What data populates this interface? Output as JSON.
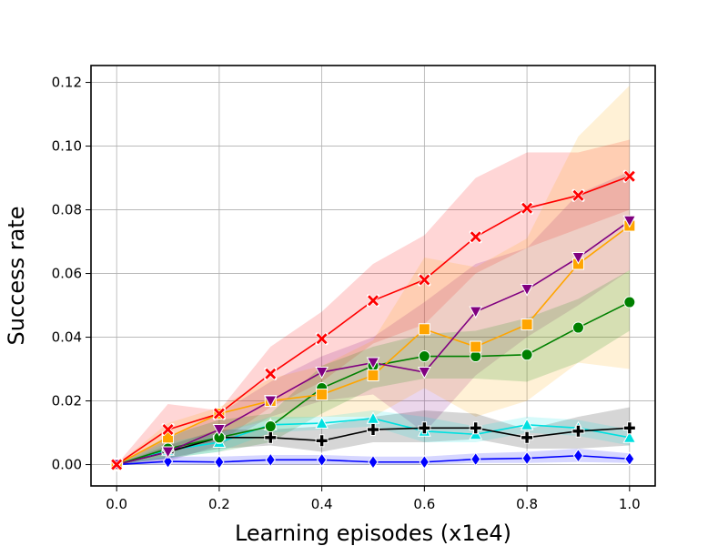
{
  "chart_data": {
    "type": "line",
    "title": "",
    "xlabel": "Learning episodes (x1e4)",
    "ylabel": "Success rate",
    "xlim": [
      -0.05,
      1.05
    ],
    "ylim": [
      -0.0067,
      0.1253
    ],
    "grid": true,
    "x": [
      0.0,
      0.1,
      0.2,
      0.3,
      0.4,
      0.5,
      0.6,
      0.7,
      0.8,
      0.9,
      1.0
    ],
    "xticks": [
      "0.0",
      "0.2",
      "0.4",
      "0.6",
      "0.8",
      "1.0"
    ],
    "yticks": [
      "0.00",
      "0.02",
      "0.04",
      "0.06",
      "0.08",
      "0.10",
      "0.12"
    ],
    "series": [
      {
        "color": "#ff0000",
        "marker": "x",
        "values": [
          0.0,
          0.011,
          0.016,
          0.0285,
          0.0395,
          0.0515,
          0.058,
          0.0715,
          0.0805,
          0.0845,
          0.0905
        ],
        "lower": [
          0.0,
          0.004,
          0.007,
          0.018,
          0.026,
          0.038,
          0.044,
          0.06,
          0.068,
          0.074,
          0.08
        ],
        "upper": [
          0.0,
          0.019,
          0.017,
          0.037,
          0.048,
          0.063,
          0.072,
          0.09,
          0.098,
          0.098,
          0.102
        ]
      },
      {
        "color": "#800080",
        "marker": "triangle-down",
        "values": [
          0.0,
          0.004,
          0.011,
          0.02,
          0.029,
          0.032,
          0.029,
          0.048,
          0.055,
          0.065,
          0.0765
        ],
        "lower": [
          0.0,
          0.001,
          0.006,
          0.015,
          0.02,
          0.022,
          0.01,
          0.028,
          0.04,
          0.05,
          0.061
        ],
        "upper": [
          0.0,
          0.008,
          0.016,
          0.026,
          0.034,
          0.04,
          0.051,
          0.063,
          0.068,
          0.085,
          0.092
        ]
      },
      {
        "color": "#ffa500",
        "marker": "square",
        "values": [
          0.0,
          0.0085,
          0.016,
          0.02,
          0.022,
          0.028,
          0.0425,
          0.037,
          0.044,
          0.063,
          0.075
        ],
        "lower": [
          0.0,
          0.003,
          0.01,
          0.014,
          0.015,
          0.015,
          0.024,
          0.015,
          0.02,
          0.032,
          0.03
        ],
        "upper": [
          0.0,
          0.013,
          0.018,
          0.027,
          0.031,
          0.039,
          0.065,
          0.062,
          0.071,
          0.103,
          0.119
        ]
      },
      {
        "color": "#008000",
        "marker": "circle",
        "values": [
          0.0,
          0.005,
          0.0085,
          0.012,
          0.024,
          0.031,
          0.034,
          0.034,
          0.0345,
          0.043,
          0.051
        ],
        "lower": [
          0.0,
          0.002,
          0.004,
          0.007,
          0.016,
          0.024,
          0.027,
          0.027,
          0.026,
          0.032,
          0.042
        ],
        "upper": [
          0.0,
          0.009,
          0.014,
          0.016,
          0.031,
          0.037,
          0.041,
          0.042,
          0.046,
          0.052,
          0.061
        ]
      },
      {
        "color": "#000000",
        "marker": "plus",
        "values": [
          0.0,
          0.004,
          0.0085,
          0.0085,
          0.0075,
          0.011,
          0.0115,
          0.0115,
          0.0085,
          0.0105,
          0.0115
        ],
        "lower": [
          0.0,
          0.002,
          0.005,
          0.006,
          0.004,
          0.007,
          0.007,
          0.008,
          0.005,
          0.005,
          0.006
        ],
        "upper": [
          0.0,
          0.006,
          0.011,
          0.011,
          0.012,
          0.015,
          0.017,
          0.016,
          0.011,
          0.015,
          0.018
        ]
      },
      {
        "color": "#00e0e0",
        "marker": "triangle-up",
        "values": [
          0.0,
          0.0045,
          0.007,
          0.0125,
          0.013,
          0.0145,
          0.0105,
          0.0095,
          0.0125,
          0.0115,
          0.0085
        ],
        "lower": [
          0.0,
          0.002,
          0.004,
          0.01,
          0.011,
          0.012,
          0.007,
          0.007,
          0.01,
          0.009,
          0.006
        ],
        "upper": [
          0.0,
          0.007,
          0.01,
          0.015,
          0.015,
          0.017,
          0.015,
          0.012,
          0.015,
          0.014,
          0.011
        ]
      },
      {
        "color": "#0000ff",
        "marker": "diamond",
        "values": [
          0.0,
          0.001,
          0.0008,
          0.0015,
          0.0015,
          0.0008,
          0.0008,
          0.0017,
          0.002,
          0.0028,
          0.0018
        ],
        "lower": [
          0.0,
          0.0,
          0.0,
          0.0,
          0.0,
          0.0,
          0.0,
          0.0005,
          0.0005,
          0.0008,
          0.0005
        ],
        "upper": [
          0.0,
          0.0025,
          0.0025,
          0.003,
          0.003,
          0.0025,
          0.0025,
          0.0035,
          0.004,
          0.005,
          0.0035
        ]
      }
    ]
  }
}
